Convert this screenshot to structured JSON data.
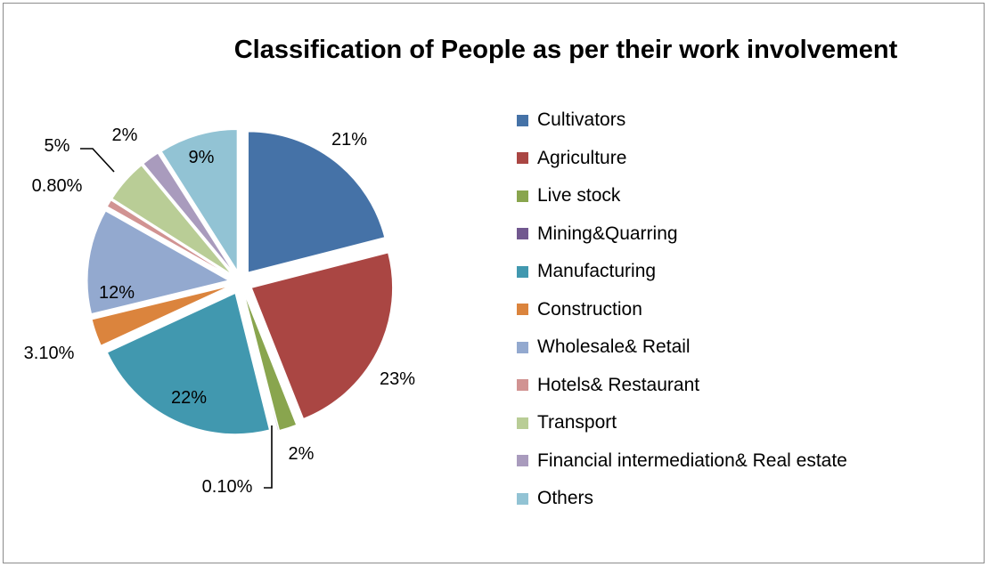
{
  "chart_data": {
    "type": "pie",
    "title": "Classification of People as per their work involvement",
    "legend_position": "right",
    "slices": [
      {
        "name": "Cultivators",
        "value": 21,
        "label": "21%",
        "color": "#4572a7"
      },
      {
        "name": "Agriculture",
        "value": 23,
        "label": "23%",
        "color": "#aa4643"
      },
      {
        "name": "Live stock",
        "value": 2,
        "label": "2%",
        "color": "#89a54e"
      },
      {
        "name": "Mining&Quarring",
        "value": 0.1,
        "label": "0.10%",
        "color": "#71588f"
      },
      {
        "name": "Manufacturing",
        "value": 22,
        "label": "22%",
        "color": "#4198af"
      },
      {
        "name": "Construction",
        "value": 3.1,
        "label": "3.10%",
        "color": "#db843d"
      },
      {
        "name": "Wholesale& Retail",
        "value": 12,
        "label": "12%",
        "color": "#93a9cf"
      },
      {
        "name": "Hotels& Restaurant",
        "value": 0.8,
        "label": "0.80%",
        "color": "#d19392"
      },
      {
        "name": "Transport",
        "value": 5,
        "label": "5%",
        "color": "#b9cd96"
      },
      {
        "name": "Financial intermediation& Real estate",
        "value": 2,
        "label": "2%",
        "color": "#a99bbd"
      },
      {
        "name": "Others",
        "value": 9,
        "label": "9%",
        "color": "#92c3d4"
      }
    ]
  }
}
